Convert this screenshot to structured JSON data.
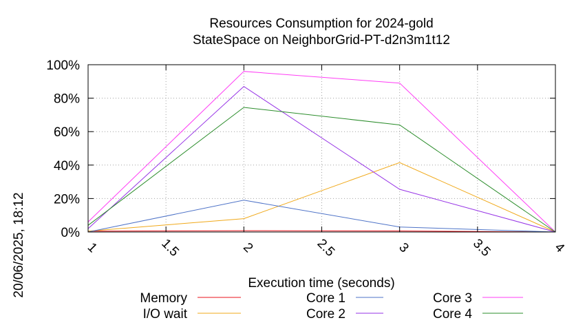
{
  "chart_data": {
    "type": "line",
    "title_line1": "Resources Consumption for 2024-gold",
    "title_line2": "StateSpace on NeighborGrid-PT-d2n3m1t12",
    "xlabel": "Execution time (seconds)",
    "ylabel": "",
    "side_label": "20/06/2025, 18:12",
    "xlim": [
      1,
      4
    ],
    "ylim": [
      0,
      100
    ],
    "x_ticks": [
      "1",
      "1.5",
      "2",
      "2.5",
      "3",
      "3.5",
      "4"
    ],
    "y_ticks": [
      "0%",
      "20%",
      "40%",
      "60%",
      "80%",
      "100%"
    ],
    "grid": true,
    "x": [
      1,
      2,
      3,
      4
    ],
    "series": [
      {
        "name": "Memory",
        "color": "#e8121b",
        "values": [
          0.5,
          0.8,
          0.6,
          0
        ]
      },
      {
        "name": "I/O wait",
        "color": "#f0a818",
        "values": [
          0.5,
          8,
          41.5,
          0
        ]
      },
      {
        "name": "Core 1",
        "color": "#4d72c7",
        "values": [
          0,
          19,
          3,
          0
        ]
      },
      {
        "name": "Core 2",
        "color": "#9632e6",
        "values": [
          2,
          87,
          25.5,
          0
        ]
      },
      {
        "name": "Core 3",
        "color": "#ff3cf5",
        "values": [
          6,
          96,
          89,
          0
        ]
      },
      {
        "name": "Core 4",
        "color": "#2a8c2a",
        "values": [
          4,
          74.5,
          64,
          0
        ]
      }
    ]
  }
}
